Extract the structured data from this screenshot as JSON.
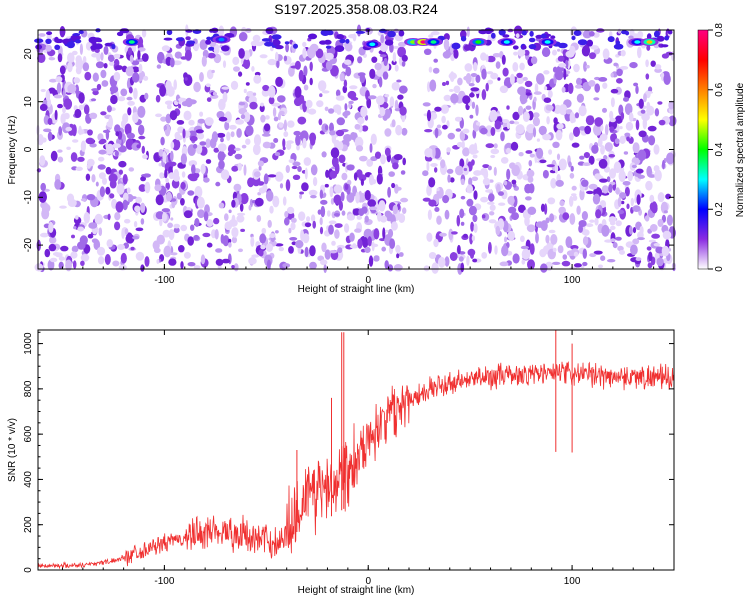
{
  "title": "S197.2025.358.08.03.R24",
  "chart_data": [
    {
      "type": "heatmap",
      "xlabel": "Height of straight line (km)",
      "ylabel": "Frequency (Hz)",
      "xlim": [
        -162,
        150
      ],
      "ylim": [
        -25,
        25
      ],
      "xticks": [
        -100,
        0,
        100
      ],
      "yticks": [
        -20,
        -10,
        0,
        10,
        20
      ],
      "colorbar": {
        "label": "Normalized spectral amplitude",
        "range": [
          0,
          0.8
        ],
        "ticks": [
          0,
          0.2,
          0.4,
          0.6,
          0.8
        ],
        "colormap": [
          "#ffffff",
          "#8a2be2",
          "#0000ff",
          "#00ffff",
          "#00ff00",
          "#ffff00",
          "#ff8000",
          "#ff0000",
          "#ff0080"
        ]
      },
      "gaps_x": [
        [
          -108,
          -104
        ],
        [
          -26,
          -24
        ],
        [
          18,
          28
        ],
        [
          54,
          56
        ]
      ],
      "hot_spots": [
        {
          "x": -116,
          "y": 22.5,
          "value": 0.35
        },
        {
          "x": -72,
          "y": 23,
          "value": 0.25
        },
        {
          "x": 2,
          "y": 22,
          "value": 0.3
        },
        {
          "x": 22,
          "y": 22.5,
          "value": 0.45
        },
        {
          "x": 27,
          "y": 22.5,
          "value": 0.8
        },
        {
          "x": 32,
          "y": 22.5,
          "value": 0.35
        },
        {
          "x": 54,
          "y": 22.5,
          "value": 0.4
        },
        {
          "x": 68,
          "y": 22.5,
          "value": 0.3
        },
        {
          "x": 88,
          "y": 22.5,
          "value": 0.3
        },
        {
          "x": 132,
          "y": 22.5,
          "value": 0.3
        },
        {
          "x": 138,
          "y": 22.5,
          "value": 0.55
        }
      ]
    },
    {
      "type": "line",
      "xlabel": "Height of straight line (km)",
      "ylabel": "SNR (10 * v/v)",
      "xlim": [
        -162,
        150
      ],
      "ylim": [
        0,
        1060
      ],
      "xticks": [
        -100,
        0,
        100
      ],
      "yticks": [
        0,
        200,
        400,
        600,
        800,
        1000
      ],
      "color": "#f03030",
      "trend": [
        [
          -162,
          18
        ],
        [
          -140,
          22
        ],
        [
          -125,
          40
        ],
        [
          -110,
          90
        ],
        [
          -95,
          130
        ],
        [
          -85,
          150
        ],
        [
          -75,
          180
        ],
        [
          -65,
          160
        ],
        [
          -55,
          140
        ],
        [
          -45,
          120
        ],
        [
          -40,
          160
        ],
        [
          -35,
          280
        ],
        [
          -30,
          330
        ],
        [
          -25,
          350
        ],
        [
          -20,
          380
        ],
        [
          -15,
          420
        ],
        [
          -10,
          470
        ],
        [
          -5,
          520
        ],
        [
          0,
          580
        ],
        [
          5,
          640
        ],
        [
          10,
          690
        ],
        [
          15,
          720
        ],
        [
          20,
          760
        ],
        [
          30,
          800
        ],
        [
          40,
          820
        ],
        [
          50,
          840
        ],
        [
          60,
          855
        ],
        [
          70,
          860
        ],
        [
          80,
          865
        ],
        [
          90,
          870
        ],
        [
          100,
          865
        ],
        [
          110,
          860
        ],
        [
          120,
          855
        ],
        [
          130,
          855
        ],
        [
          140,
          850
        ],
        [
          150,
          850
        ]
      ],
      "spikes": [
        {
          "x": -35,
          "y": 530
        },
        {
          "x": -18,
          "y": 760
        },
        {
          "x": -13,
          "y": 1050
        },
        {
          "x": -12,
          "y": 1050
        },
        {
          "x": 92,
          "y": 1070
        },
        {
          "x": 100,
          "y": 1000
        }
      ]
    }
  ]
}
